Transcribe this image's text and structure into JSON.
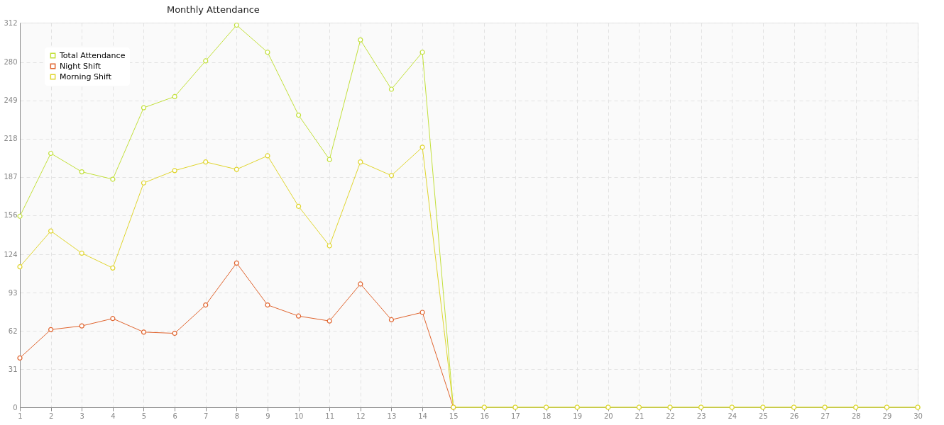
{
  "chart_data": {
    "type": "line",
    "title": "Monthly Attendance",
    "x": [
      1,
      2,
      3,
      4,
      5,
      6,
      7,
      8,
      9,
      10,
      11,
      12,
      13,
      14,
      15,
      16,
      17,
      18,
      19,
      20,
      21,
      22,
      23,
      24,
      25,
      26,
      27,
      28,
      29,
      30
    ],
    "xlim": [
      1,
      30
    ],
    "xticks": [
      1,
      2,
      3,
      4,
      5,
      6,
      7,
      8,
      9,
      10,
      11,
      12,
      13,
      14,
      15,
      16,
      17,
      18,
      19,
      20,
      21,
      22,
      23,
      24,
      25,
      26,
      27,
      28,
      29,
      30
    ],
    "ylim": [
      0,
      312
    ],
    "yticks": [
      0,
      31,
      62,
      93,
      124,
      156,
      187,
      218,
      249,
      280,
      312
    ],
    "grid": true,
    "legend": "top left",
    "marker": "circle",
    "line_style": "solid",
    "series": [
      {
        "name": "Total Attendance",
        "color": "#c2e03a",
        "values": [
          155,
          206,
          191,
          185,
          243,
          252,
          281,
          310,
          288,
          237,
          201,
          298,
          258,
          288,
          0,
          0,
          0,
          0,
          0,
          0,
          0,
          0,
          0,
          0,
          0,
          0,
          0,
          0,
          0,
          0
        ]
      },
      {
        "name": "Night Shift",
        "color": "#e0642e",
        "values": [
          40,
          63,
          66,
          72,
          61,
          60,
          83,
          117,
          83,
          74,
          70,
          100,
          71,
          77,
          0,
          null,
          null,
          null,
          null,
          null,
          null,
          null,
          null,
          null,
          null,
          null,
          null,
          null,
          null,
          null
        ]
      },
      {
        "name": "Morning Shift",
        "color": "#e0d52e",
        "values": [
          114,
          143,
          125,
          113,
          182,
          192,
          199,
          193,
          204,
          163,
          131,
          199,
          188,
          211,
          0,
          0,
          0,
          0,
          0,
          0,
          0,
          0,
          0,
          0,
          0,
          0,
          0,
          0,
          0,
          0
        ]
      }
    ]
  }
}
